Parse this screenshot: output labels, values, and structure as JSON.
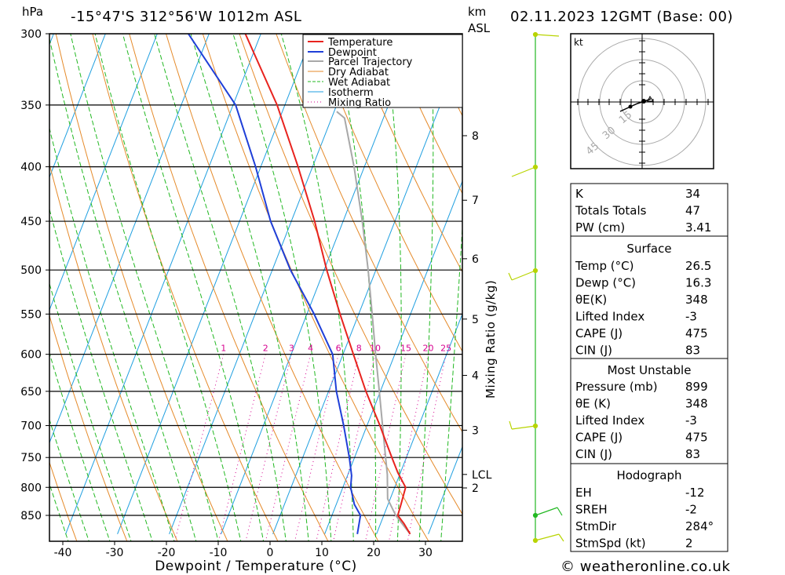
{
  "header": {
    "pressure_unit": "hPa",
    "location": "-15°47'S 312°56'W 1012m ASL",
    "km_label": "km",
    "asl_label": "ASL",
    "datetime": "02.11.2023 12GMT (Base: 00)"
  },
  "chart_data": {
    "type": "line",
    "subtype": "skew-T log-P",
    "xlabel": "Dewpoint / Temperature (°C)",
    "ylabel": "hPa",
    "right_label": "Mixing Ratio (g/kg)",
    "xlim": [
      -43,
      37
    ],
    "ylim": [
      885,
      300
    ],
    "pressure_ticks": [
      300,
      350,
      400,
      450,
      500,
      550,
      600,
      650,
      700,
      750,
      800,
      850
    ],
    "temp_ticks": [
      -40,
      -30,
      -20,
      -10,
      0,
      10,
      20,
      30
    ],
    "km_ticks": [
      {
        "label": "8",
        "p": 374
      },
      {
        "label": "7",
        "p": 430
      },
      {
        "label": "6",
        "p": 488
      },
      {
        "label": "5",
        "p": 556
      },
      {
        "label": "4",
        "p": 628
      },
      {
        "label": "3",
        "p": 707
      },
      {
        "label": "LCL",
        "p": 778
      },
      {
        "label": "2",
        "p": 801
      }
    ],
    "mixing_ratio_labels": [
      "1",
      "2",
      "3",
      "4",
      "6",
      "8",
      "10",
      "15",
      "20",
      "25"
    ],
    "mixing_ratio_values": [
      1,
      2,
      3,
      4,
      6,
      8,
      10,
      15,
      20,
      25
    ],
    "legend": [
      "Temperature",
      "Dewpoint",
      "Parcel Trajectory",
      "Dry Adiabat",
      "Wet Adiabat",
      "Isotherm",
      "Mixing Ratio"
    ],
    "colors": {
      "temperature": "#e8231e",
      "dewpoint": "#1f3fd8",
      "parcel": "#a8a8a8",
      "dry_adiabat": "#e58a2a",
      "wet_adiabat": "#22b822",
      "isotherm": "#1f9fe0",
      "mixing_ratio": "#d6008f",
      "wind_barb": "#b8d400",
      "wind_barb_low": "#22b822"
    },
    "series": [
      {
        "name": "Temperature",
        "points": [
          [
            885,
            26.5
          ],
          [
            865,
            24.5
          ],
          [
            850,
            22.7
          ],
          [
            830,
            22.5
          ],
          [
            800,
            22.1
          ],
          [
            775,
            19.5
          ],
          [
            750,
            17.2
          ],
          [
            720,
            14.4
          ],
          [
            700,
            12.5
          ],
          [
            650,
            7.2
          ],
          [
            600,
            2.0
          ],
          [
            550,
            -3.6
          ],
          [
            500,
            -9.5
          ],
          [
            450,
            -15.5
          ],
          [
            400,
            -22.8
          ],
          [
            350,
            -31.5
          ],
          [
            300,
            -43
          ]
        ]
      },
      {
        "name": "Dewpoint",
        "points": [
          [
            885,
            16.3
          ],
          [
            850,
            15.5
          ],
          [
            830,
            13.5
          ],
          [
            800,
            11.5
          ],
          [
            780,
            10.8
          ],
          [
            750,
            9.0
          ],
          [
            700,
            5.5
          ],
          [
            650,
            1.5
          ],
          [
            600,
            -2.0
          ],
          [
            550,
            -8.6
          ],
          [
            500,
            -16.5
          ],
          [
            450,
            -24.0
          ],
          [
            400,
            -31.0
          ],
          [
            350,
            -39.5
          ],
          [
            300,
            -54
          ]
        ]
      },
      {
        "name": "Parcel Trajectory",
        "points": [
          [
            885,
            26.5
          ],
          [
            850,
            22.3
          ],
          [
            820,
            19.5
          ],
          [
            778,
            17.6
          ],
          [
            750,
            16.0
          ],
          [
            700,
            13.0
          ],
          [
            650,
            9.8
          ],
          [
            600,
            6.3
          ],
          [
            550,
            2.6
          ],
          [
            500,
            -1.5
          ],
          [
            450,
            -6.3
          ],
          [
            400,
            -12.0
          ],
          [
            360,
            -17.5
          ],
          [
            355,
            -19.5
          ]
        ]
      }
    ]
  },
  "wind_profile_label": "kt",
  "hodograph": {
    "unit_label": "kt",
    "ring_labels": [
      "15",
      "30",
      "45"
    ]
  },
  "indices": {
    "top": [
      {
        "label": "K",
        "value": "34"
      },
      {
        "label": "Totals Totals",
        "value": "47"
      },
      {
        "label": "PW (cm)",
        "value": "3.41"
      }
    ],
    "surface": {
      "title": "Surface",
      "rows": [
        {
          "label": "Temp (°C)",
          "value": "26.5"
        },
        {
          "label": "Dewp (°C)",
          "value": "16.3"
        },
        {
          "label": "θE(K)",
          "value": "348"
        },
        {
          "label": "Lifted Index",
          "value": "-3"
        },
        {
          "label": "CAPE (J)",
          "value": "475"
        },
        {
          "label": "CIN (J)",
          "value": "83"
        }
      ]
    },
    "most_unstable": {
      "title": "Most Unstable",
      "rows": [
        {
          "label": "Pressure (mb)",
          "value": "899"
        },
        {
          "label": "θE (K)",
          "value": "348"
        },
        {
          "label": "Lifted Index",
          "value": "-3"
        },
        {
          "label": "CAPE (J)",
          "value": "475"
        },
        {
          "label": "CIN (J)",
          "value": "83"
        }
      ]
    },
    "hodograph_box": {
      "title": "Hodograph",
      "rows": [
        {
          "label": "EH",
          "value": "-12"
        },
        {
          "label": "SREH",
          "value": "-2"
        },
        {
          "label": "StmDir",
          "value": "284°"
        },
        {
          "label": "StmSpd (kt)",
          "value": "2"
        }
      ]
    }
  },
  "copyright": "© weatheronline.co.uk"
}
